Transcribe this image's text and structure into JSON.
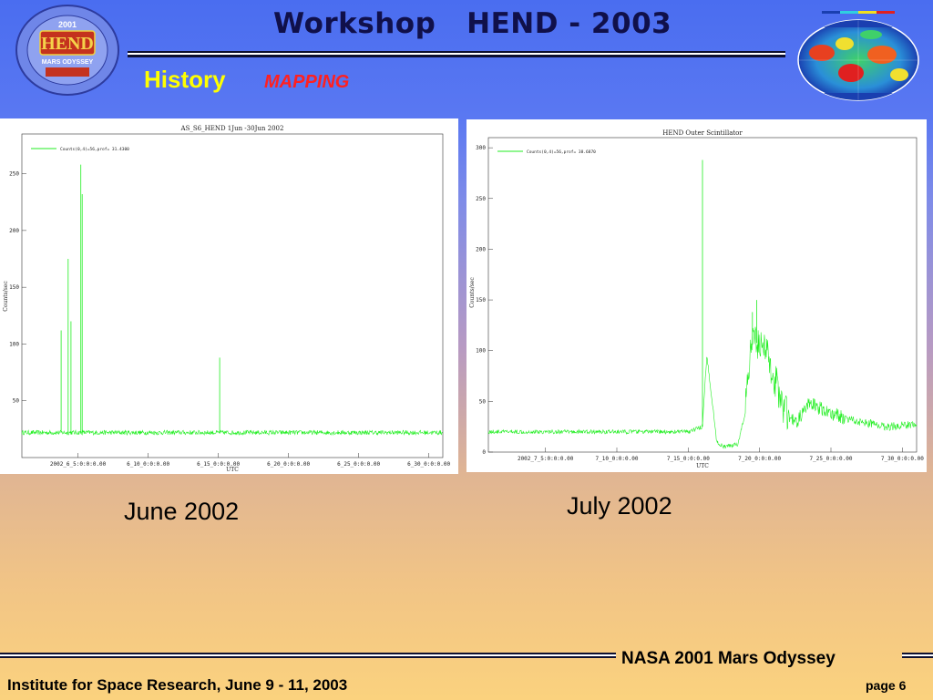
{
  "header": {
    "title": "Workshop   HEND - 2003",
    "section": "History",
    "section_sub": "MAPPING",
    "logo_text": "HEND",
    "logo_sub": "MARS ODYSSEY",
    "logo_year": "2001"
  },
  "captions": {
    "left": "June 2002",
    "right": "July 2002"
  },
  "footer": {
    "mission": "NASA 2001 Mars Odyssey",
    "institute": "Institute for Space Research, June 9 - 11, 2003",
    "page": "page 6"
  },
  "colors": {
    "series": "#22ee22",
    "title": "#10104a",
    "accent": "#ffff00",
    "mapping": "#ff2020"
  },
  "chart_data": [
    {
      "type": "line",
      "title": "AS_S6_HEND 1Jun -30Jun 2002",
      "xlabel": "UTC",
      "ylabel": "Counts/sec",
      "xlim": [
        1,
        31
      ],
      "ylim": [
        0,
        285
      ],
      "yticks": [
        50,
        100,
        150,
        200,
        250
      ],
      "xticks": [
        {
          "day": 5,
          "label": "2002_6_5:0:0:0.00"
        },
        {
          "day": 10,
          "label": "6_10_0:0:0.00"
        },
        {
          "day": 15,
          "label": "6_15_0:0:0.00"
        },
        {
          "day": 20,
          "label": "6_20_0:0:0.00"
        },
        {
          "day": 25,
          "label": "6_25_0:0:0.00"
        },
        {
          "day": 30,
          "label": "6_30_0:0:0.00"
        }
      ],
      "legend": "Counts(0,4)=56,prof= 31.4300",
      "legend_position": "top-left",
      "series": [
        {
          "baseline": 22,
          "spikes": [
            [
              3.8,
              112
            ],
            [
              4.3,
              175
            ],
            [
              4.5,
              120
            ],
            [
              5.2,
              258
            ],
            [
              5.3,
              232
            ],
            [
              15.1,
              88
            ]
          ]
        }
      ]
    },
    {
      "type": "line",
      "title": "HEND Outer Scintillator",
      "xlabel": "UTC",
      "ylabel": "Counts/sec",
      "xlim": [
        1,
        31
      ],
      "ylim": [
        0,
        310
      ],
      "yticks": [
        0,
        50,
        100,
        150,
        200,
        250,
        300
      ],
      "xticks": [
        {
          "day": 5,
          "label": "2002_7_5:0:0:0.00"
        },
        {
          "day": 10,
          "label": "7_10_0:0:0.00"
        },
        {
          "day": 15,
          "label": "7_15_0:0:0.00"
        },
        {
          "day": 20,
          "label": "7_20_0:0:0.00"
        },
        {
          "day": 25,
          "label": "7_25_0:0:0.00"
        },
        {
          "day": 30,
          "label": "7_30_0:0:0.00"
        }
      ],
      "legend": "Counts(0,4)=56,prof= 38.6870",
      "legend_position": "top-left",
      "series": [
        {
          "baseline": 20,
          "spikes": [
            [
              16.0,
              288
            ],
            [
              19.5,
              138
            ],
            [
              19.8,
              150
            ]
          ],
          "profile": [
            [
              1,
              20
            ],
            [
              15,
              20
            ],
            [
              16,
              25
            ],
            [
              16.3,
              95
            ],
            [
              16.6,
              60
            ],
            [
              17.0,
              10
            ],
            [
              17.5,
              5
            ],
            [
              18.5,
              8
            ],
            [
              19,
              40
            ],
            [
              19.4,
              105
            ],
            [
              20.2,
              110
            ],
            [
              21,
              75
            ],
            [
              21.8,
              40
            ],
            [
              22.5,
              28
            ],
            [
              23.5,
              48
            ],
            [
              25,
              38
            ],
            [
              27,
              30
            ],
            [
              29,
              25
            ],
            [
              31,
              28
            ]
          ]
        }
      ]
    }
  ]
}
